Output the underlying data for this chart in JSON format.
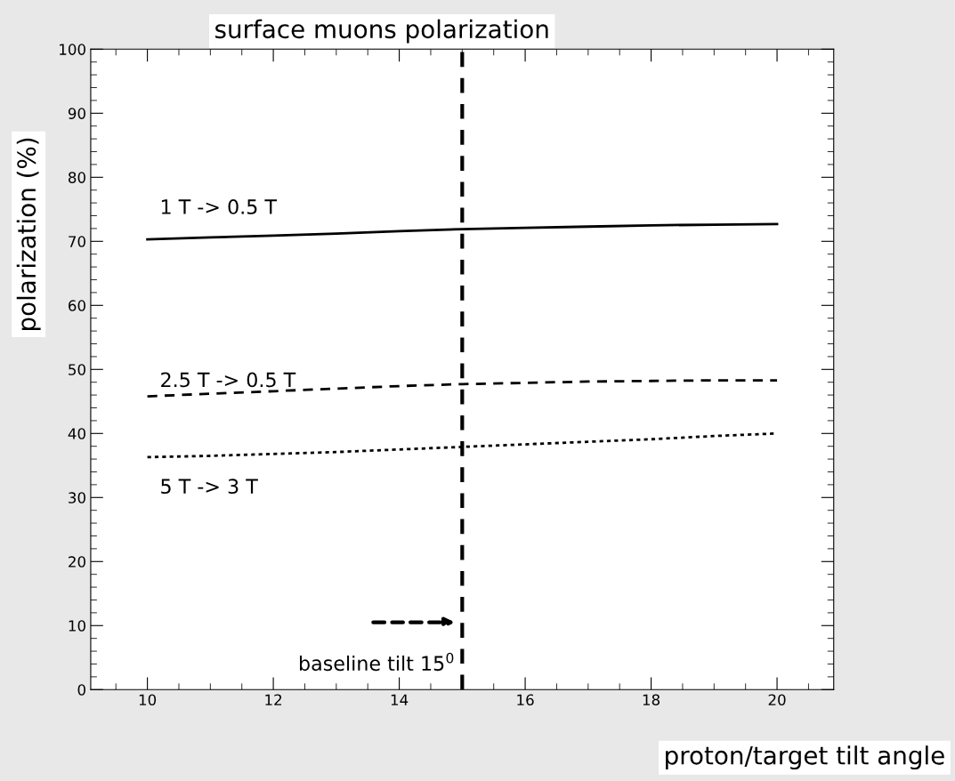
{
  "chart_data": {
    "type": "line",
    "title": "surface muons polarization",
    "xlabel": "proton/target tilt angle",
    "ylabel": "polarization (%)",
    "x": [
      10,
      11,
      12,
      13,
      14,
      15,
      16,
      17,
      18,
      19,
      20
    ],
    "series": [
      {
        "name": "1 T -> 0.5 T",
        "color": "#000000",
        "line_style": "solid",
        "values": [
          70.3,
          70.6,
          70.9,
          71.2,
          71.6,
          71.9,
          72.1,
          72.3,
          72.5,
          72.6,
          72.7
        ]
      },
      {
        "name": "2.5 T -> 0.5 T",
        "color": "#000000",
        "line_style": "dashed",
        "values": [
          45.8,
          46.2,
          46.6,
          47.0,
          47.4,
          47.7,
          47.9,
          48.1,
          48.2,
          48.3,
          48.3
        ]
      },
      {
        "name": "5 T -> 3 T",
        "color": "#000000",
        "line_style": "dotted",
        "values": [
          36.3,
          36.5,
          36.8,
          37.1,
          37.5,
          37.9,
          38.3,
          38.7,
          39.1,
          39.6,
          40.0
        ]
      }
    ],
    "xlim": [
      9.1,
      20.9
    ],
    "ylim": [
      0,
      100
    ],
    "xticks": [
      10,
      12,
      14,
      16,
      18,
      20
    ],
    "yticks": [
      0,
      10,
      20,
      30,
      40,
      50,
      60,
      70,
      80,
      90,
      100
    ],
    "ref_lines": [
      {
        "axis": "x",
        "value": 15,
        "label": "baseline tilt 15$^{0}$",
        "color": "#000000",
        "line_style": "dashed"
      }
    ],
    "grid": false,
    "legend": false,
    "marker": "none"
  }
}
